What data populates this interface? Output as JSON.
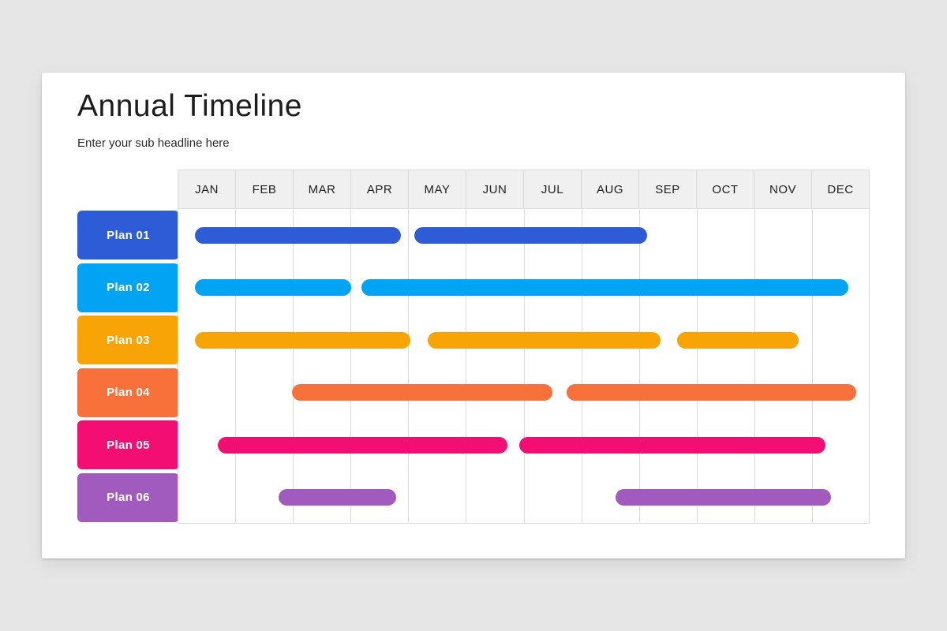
{
  "page": {
    "background_color": "#e6e6e6",
    "card_background_color": "#ffffff"
  },
  "header": {
    "title": "Annual Timeline",
    "subtitle": "Enter your sub headline here"
  },
  "chart_data": {
    "type": "gantt",
    "title": "Annual Timeline",
    "x_axis": {
      "unit": "month",
      "range_months": [
        0,
        12
      ],
      "tick_labels": [
        "JAN",
        "FEB",
        "MAR",
        "APR",
        "MAY",
        "JUN",
        "JUL",
        "AUG",
        "SEP",
        "OCT",
        "NOV",
        "DEC"
      ]
    },
    "grid": "vertical-only",
    "grid_line_color": "#dcdcdc",
    "header_background_color": "#f0f0f0",
    "rows": [
      {
        "label": "Plan 01",
        "color": "#2e5cd6",
        "bars": [
          {
            "start_month": 0.3,
            "end_month": 3.87
          },
          {
            "start_month": 4.1,
            "end_month": 8.14
          }
        ]
      },
      {
        "label": "Plan 02",
        "color": "#03a3f4",
        "bars": [
          {
            "start_month": 0.3,
            "end_month": 3.01
          },
          {
            "start_month": 3.19,
            "end_month": 11.63
          }
        ]
      },
      {
        "label": "Plan 03",
        "color": "#f8a306",
        "bars": [
          {
            "start_month": 0.3,
            "end_month": 4.04
          },
          {
            "start_month": 4.34,
            "end_month": 8.37
          },
          {
            "start_month": 8.66,
            "end_month": 10.77
          }
        ]
      },
      {
        "label": "Plan 04",
        "color": "#f8713b",
        "bars": [
          {
            "start_month": 1.98,
            "end_month": 6.5
          },
          {
            "start_month": 6.75,
            "end_month": 11.77
          }
        ]
      },
      {
        "label": "Plan 05",
        "color": "#f30e74",
        "bars": [
          {
            "start_month": 0.7,
            "end_month": 5.72
          },
          {
            "start_month": 5.93,
            "end_month": 11.23
          }
        ]
      },
      {
        "label": "Plan 06",
        "color": "#a15abe",
        "bars": [
          {
            "start_month": 1.75,
            "end_month": 3.79
          },
          {
            "start_month": 7.6,
            "end_month": 11.33
          }
        ]
      }
    ]
  }
}
